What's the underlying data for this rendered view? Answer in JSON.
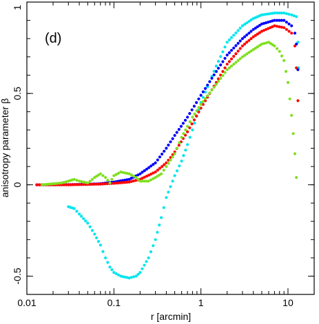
{
  "chart_data": {
    "type": "scatter",
    "panel_label": "(d)",
    "xlabel": "r [arcmin]",
    "ylabel": "anisotropy parameter β",
    "xscale": "log",
    "xlim": [
      0.01,
      20
    ],
    "ylim": [
      -0.6,
      1.0
    ],
    "x_ticks": [
      {
        "value": 0.01,
        "label": "0.01"
      },
      {
        "value": 0.1,
        "label": "0.1"
      },
      {
        "value": 1,
        "label": "1"
      },
      {
        "value": 10,
        "label": "10"
      }
    ],
    "y_ticks": [
      {
        "value": -0.5,
        "label": "-0.5"
      },
      {
        "value": 0,
        "label": "0"
      },
      {
        "value": 0.5,
        "label": "0.5"
      },
      {
        "value": 1,
        "label": "1"
      }
    ],
    "grid": false,
    "legend": "none",
    "series": [
      {
        "color": "#00e5ee",
        "points": [
          [
            0.03,
            -0.12
          ],
          [
            0.035,
            -0.13
          ],
          [
            0.04,
            -0.16
          ],
          [
            0.05,
            -0.21
          ],
          [
            0.06,
            -0.27
          ],
          [
            0.07,
            -0.33
          ],
          [
            0.08,
            -0.4
          ],
          [
            0.09,
            -0.45
          ],
          [
            0.1,
            -0.48
          ],
          [
            0.12,
            -0.5
          ],
          [
            0.15,
            -0.51
          ],
          [
            0.18,
            -0.5
          ],
          [
            0.2,
            -0.48
          ],
          [
            0.25,
            -0.4
          ],
          [
            0.3,
            -0.3
          ],
          [
            0.35,
            -0.18
          ],
          [
            0.4,
            -0.07
          ],
          [
            0.5,
            0.05
          ],
          [
            0.6,
            0.13
          ],
          [
            0.7,
            0.22
          ],
          [
            0.8,
            0.3
          ],
          [
            1.0,
            0.45
          ],
          [
            1.5,
            0.65
          ],
          [
            2.0,
            0.78
          ],
          [
            3.0,
            0.87
          ],
          [
            4.0,
            0.91
          ],
          [
            5.0,
            0.93
          ],
          [
            7.0,
            0.94
          ],
          [
            9.0,
            0.94
          ],
          [
            11.0,
            0.93
          ],
          [
            12.5,
            0.92
          ],
          [
            13.0,
            0.78
          ],
          [
            13.2,
            0.64
          ]
        ]
      },
      {
        "color": "#0000ff",
        "points": [
          [
            0.013,
            0.0
          ],
          [
            0.02,
            0.0
          ],
          [
            0.03,
            0.001
          ],
          [
            0.05,
            0.003
          ],
          [
            0.07,
            0.006
          ],
          [
            0.1,
            0.015
          ],
          [
            0.15,
            0.03
          ],
          [
            0.2,
            0.06
          ],
          [
            0.3,
            0.12
          ],
          [
            0.4,
            0.2
          ],
          [
            0.5,
            0.27
          ],
          [
            0.7,
            0.37
          ],
          [
            1.0,
            0.49
          ],
          [
            1.5,
            0.62
          ],
          [
            2.0,
            0.71
          ],
          [
            3.0,
            0.8
          ],
          [
            4.0,
            0.85
          ],
          [
            5.0,
            0.88
          ],
          [
            7.0,
            0.9
          ],
          [
            9.0,
            0.9
          ],
          [
            11.0,
            0.87
          ],
          [
            12.0,
            0.83
          ],
          [
            12.5,
            0.77
          ],
          [
            13.0,
            0.63
          ]
        ]
      },
      {
        "color": "#ff0000",
        "points": [
          [
            0.013,
            0.0
          ],
          [
            0.02,
            0.0
          ],
          [
            0.03,
            0.0
          ],
          [
            0.05,
            0.002
          ],
          [
            0.07,
            0.004
          ],
          [
            0.1,
            0.008
          ],
          [
            0.15,
            0.015
          ],
          [
            0.2,
            0.03
          ],
          [
            0.3,
            0.07
          ],
          [
            0.4,
            0.12
          ],
          [
            0.5,
            0.18
          ],
          [
            0.7,
            0.29
          ],
          [
            1.0,
            0.42
          ],
          [
            1.5,
            0.56
          ],
          [
            2.0,
            0.66
          ],
          [
            3.0,
            0.76
          ],
          [
            4.0,
            0.81
          ],
          [
            5.0,
            0.84
          ],
          [
            7.0,
            0.87
          ],
          [
            9.0,
            0.86
          ],
          [
            11.0,
            0.83
          ],
          [
            12.0,
            0.76
          ],
          [
            12.5,
            0.64
          ],
          [
            13.0,
            0.46
          ]
        ]
      },
      {
        "color": "#7fdf1f",
        "points": [
          [
            0.015,
            0.0
          ],
          [
            0.025,
            0.01
          ],
          [
            0.03,
            0.02
          ],
          [
            0.035,
            0.03
          ],
          [
            0.04,
            0.02
          ],
          [
            0.05,
            0.01
          ],
          [
            0.06,
            0.04
          ],
          [
            0.07,
            0.06
          ],
          [
            0.08,
            0.04
          ],
          [
            0.09,
            0.01
          ],
          [
            0.1,
            0.05
          ],
          [
            0.12,
            0.07
          ],
          [
            0.15,
            0.06
          ],
          [
            0.18,
            0.04
          ],
          [
            0.2,
            0.02
          ],
          [
            0.25,
            0.02
          ],
          [
            0.3,
            0.04
          ],
          [
            0.35,
            0.06
          ],
          [
            0.4,
            0.1
          ],
          [
            0.5,
            0.17
          ],
          [
            0.6,
            0.26
          ],
          [
            0.7,
            0.32
          ],
          [
            0.8,
            0.37
          ],
          [
            1.0,
            0.44
          ],
          [
            1.5,
            0.55
          ],
          [
            2.0,
            0.63
          ],
          [
            3.0,
            0.7
          ],
          [
            4.0,
            0.74
          ],
          [
            5.0,
            0.77
          ],
          [
            6.0,
            0.78
          ],
          [
            7.0,
            0.76
          ],
          [
            8.0,
            0.73
          ],
          [
            9.0,
            0.68
          ],
          [
            10.0,
            0.56
          ],
          [
            11.0,
            0.38
          ],
          [
            11.5,
            0.28
          ],
          [
            12.0,
            0.17
          ],
          [
            12.5,
            0.04
          ]
        ]
      }
    ]
  }
}
